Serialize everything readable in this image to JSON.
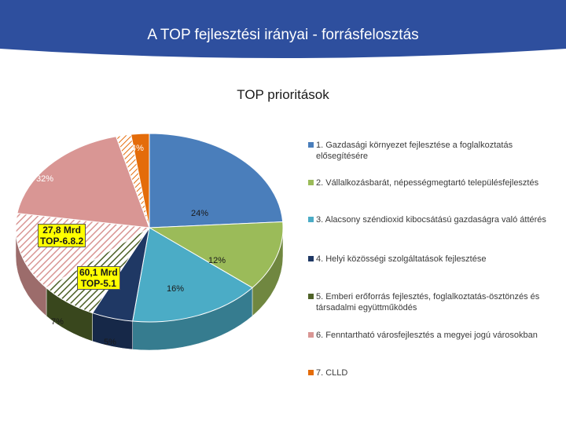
{
  "header": {
    "title": "A TOP fejlesztési irányai - forrásfelosztás",
    "bg_color": "#2E4F9E"
  },
  "chart_data": {
    "type": "pie",
    "title": "TOP prioritások",
    "series": [
      {
        "name": "1. Gazdasági környezet fejlesztése a foglalkoztatás elősegítésére",
        "value": 24,
        "label": "24%",
        "color": "#4A7EBB"
      },
      {
        "name": "2. Vállalkozásbarát, népességmegtartó településfejlesztés",
        "value": 12,
        "label": "12%",
        "color": "#9BBB59"
      },
      {
        "name": "3. Alacsony széndioxid kibocsátású gazdaságra való áttérés",
        "value": 16,
        "label": "16%",
        "color": "#4BACC6"
      },
      {
        "name": "4. Helyi közösségi szolgáltatások fejlesztése",
        "value": 5,
        "label": "5%",
        "color": "#1F3864"
      },
      {
        "name": "5. Emberi erőforrás fejlesztés, foglalkoztatás-ösztönzés és társadalmi együttműködés",
        "value": 7,
        "label": "7%",
        "color": "#4F6228"
      },
      {
        "name": "6. Fenntartható városfejlesztés a megyei jogú városokban",
        "value": 32,
        "label": "32%",
        "color": "#D99694"
      },
      {
        "name": "7. CLLD",
        "value": 4,
        "label": "4%",
        "color": "#E46C0A"
      }
    ],
    "callouts": [
      {
        "text_line1": "27,8 Mrd",
        "text_line2": "TOP-6.8.2"
      },
      {
        "text_line1": "60,1 Mrd",
        "text_line2": "TOP-5.1"
      }
    ],
    "legend_position": "right"
  }
}
